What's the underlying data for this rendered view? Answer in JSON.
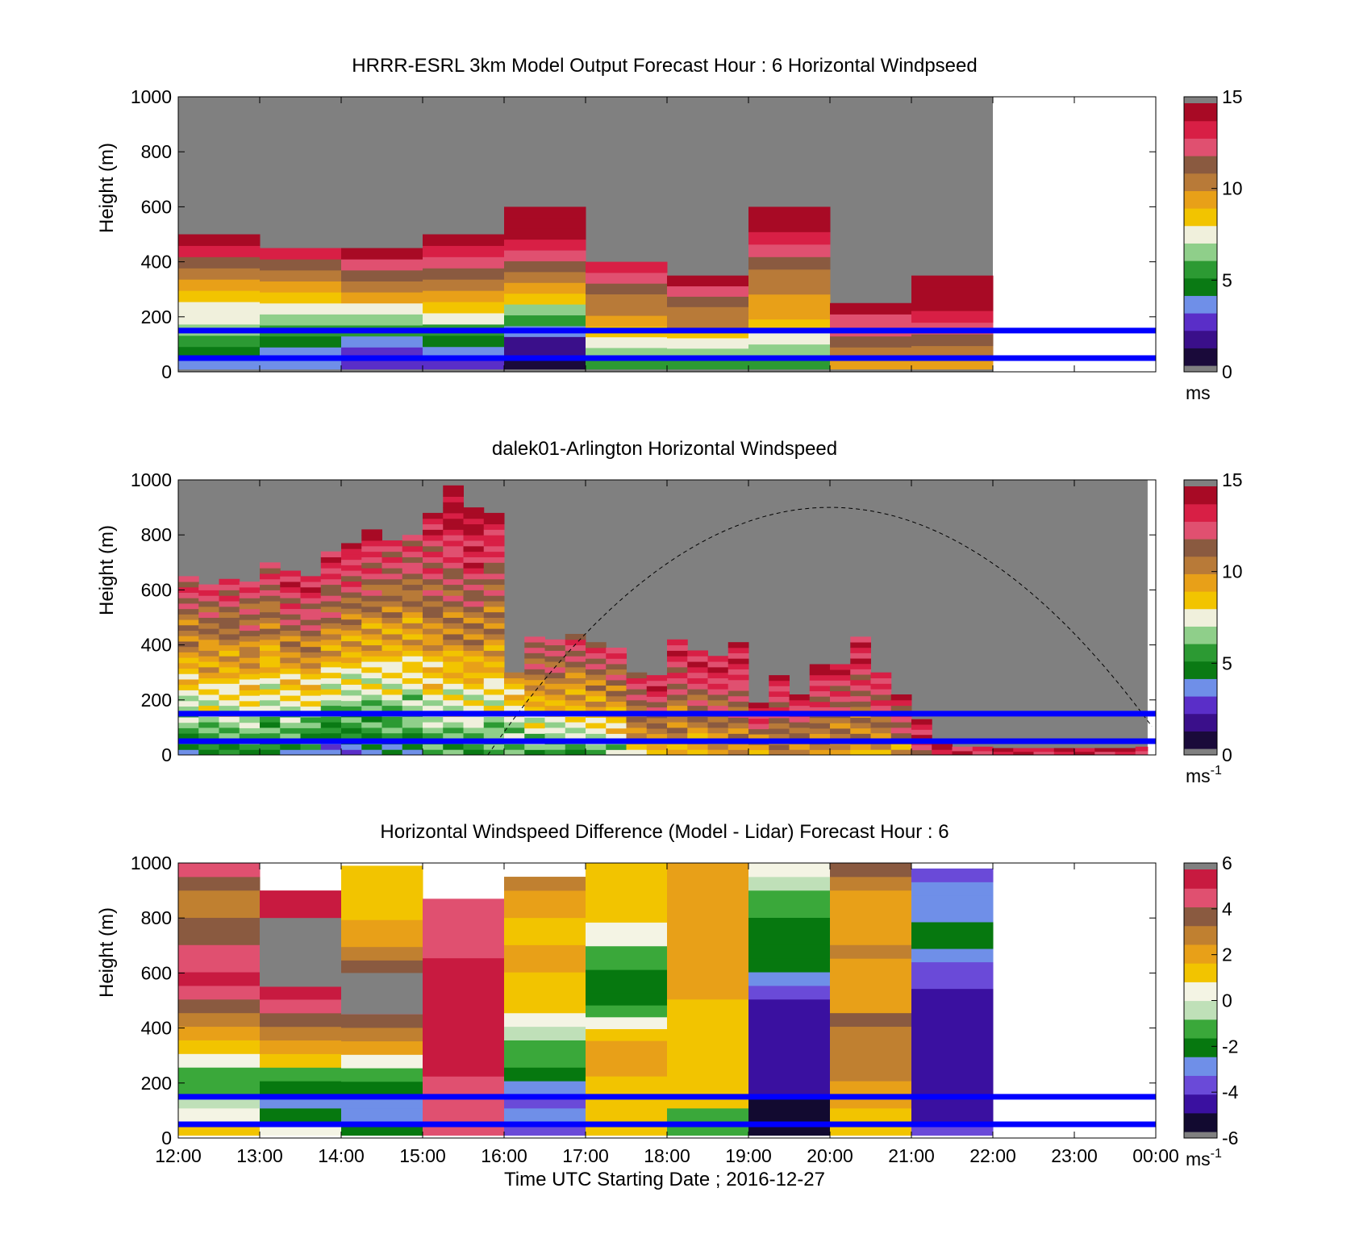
{
  "figure": {
    "xlabel": "Time UTC  Starting Date ; 2016-12-27",
    "x_ticks": [
      "12:00",
      "13:00",
      "14:00",
      "15:00",
      "16:00",
      "17:00",
      "18:00",
      "19:00",
      "20:00",
      "21:00",
      "22:00",
      "23:00",
      "00:00"
    ],
    "y_ticks": [
      "0",
      "200",
      "400",
      "600",
      "800",
      "1000"
    ],
    "ylabel": "Height (m)",
    "background_color": "#808080",
    "reference_line_color": "#0000ff",
    "reference_heights_m": [
      50,
      150
    ],
    "sun_curve_peak": {
      "time_h": 20.0,
      "height_m": 900
    }
  },
  "colormap_speed": [
    "#1a0a3a",
    "#3a0f8a",
    "#5a2ec8",
    "#6f8fe8",
    "#0a7a14",
    "#2c9a33",
    "#8fcf8a",
    "#f0f0dc",
    "#f2c400",
    "#e8a018",
    "#b87a38",
    "#8a5a40",
    "#e05070",
    "#d81f45",
    "#a80a25"
  ],
  "colormap_diff": [
    "#120a30",
    "#3a10a0",
    "#6a4ad8",
    "#6f8fe8",
    "#06780f",
    "#3aa83a",
    "#bfe0b8",
    "#f4f4e4",
    "#f2c400",
    "#e8a018",
    "#c08030",
    "#8a5a40",
    "#e05070",
    "#c81a40"
  ],
  "chart_data": [
    {
      "type": "heatmap",
      "title": "HRRR-ESRL 3km Model Output   Forecast Hour : 6 Horizontal Windpseed",
      "ylim": [
        0,
        1000
      ],
      "xlim": [
        "12:00",
        "00:00"
      ],
      "x_hours": [
        12,
        13,
        14,
        15,
        16,
        17,
        18,
        19,
        20,
        21,
        22
      ],
      "colorbar": {
        "ticks": [
          "0",
          "5",
          "10",
          "15"
        ],
        "unit": "ms",
        "range": [
          0,
          15
        ]
      },
      "columns": [
        {
          "top_m": 500,
          "speeds": [
            3,
            4,
            5,
            6,
            7,
            7.5,
            8,
            9,
            10,
            11,
            13,
            14
          ]
        },
        {
          "top_m": 450,
          "speeds": [
            3,
            3.5,
            4,
            5,
            6,
            7,
            8,
            9.5,
            10.5,
            11.5,
            13
          ]
        },
        {
          "top_m": 450,
          "speeds": [
            2,
            2.5,
            3.5,
            5,
            6,
            7,
            9,
            10,
            11,
            12,
            14
          ]
        },
        {
          "top_m": 500,
          "speeds": [
            2,
            3,
            4,
            5,
            7,
            8,
            9,
            10,
            11,
            12,
            13,
            14.5
          ]
        },
        {
          "top_m": 600,
          "speeds": [
            0.5,
            1,
            1.5,
            3,
            5,
            6,
            8,
            9,
            10,
            11,
            12,
            13,
            14,
            15,
            15
          ]
        },
        {
          "top_m": 400,
          "speeds": [
            5,
            6,
            7,
            8,
            9,
            10,
            10.5,
            11,
            12,
            13
          ]
        },
        {
          "top_m": 350,
          "speeds": [
            5,
            6,
            7,
            8.5,
            10,
            10.5,
            11,
            12,
            14
          ]
        },
        {
          "top_m": 600,
          "speeds": [
            5,
            6,
            7,
            8,
            9,
            9.5,
            10,
            10.5,
            11,
            12,
            13,
            14,
            15
          ]
        },
        {
          "top_m": 250,
          "speeds": [
            9,
            10,
            11,
            12,
            12.5,
            14
          ]
        },
        {
          "top_m": 350,
          "speeds": [
            9,
            10,
            11,
            12,
            13,
            14,
            14.5,
            15
          ]
        }
      ]
    },
    {
      "type": "heatmap",
      "title": "dalek01-Arlington  Horizontal Windspeed",
      "ylim": [
        0,
        1000
      ],
      "xlim": [
        "12:00",
        "00:00"
      ],
      "x_hours": [
        12,
        13,
        14,
        15,
        16,
        17,
        18,
        19,
        20,
        21,
        22,
        23,
        24
      ],
      "colorbar": {
        "ticks": [
          "0",
          "5",
          "10",
          "15"
        ],
        "unit": "ms",
        "unit_exponent": "-1",
        "range": [
          0,
          15
        ]
      },
      "profiles": [
        {
          "t": 12.0,
          "top": 650,
          "base": 4,
          "peak": 13
        },
        {
          "t": 12.25,
          "top": 620,
          "base": 4,
          "peak": 13
        },
        {
          "t": 12.5,
          "top": 640,
          "base": 4.5,
          "peak": 13
        },
        {
          "t": 12.75,
          "top": 630,
          "base": 5,
          "peak": 13
        },
        {
          "t": 13.0,
          "top": 700,
          "base": 4,
          "peak": 13
        },
        {
          "t": 13.25,
          "top": 670,
          "base": 4,
          "peak": 14
        },
        {
          "t": 13.5,
          "top": 650,
          "base": 4,
          "peak": 14
        },
        {
          "t": 13.75,
          "top": 740,
          "base": 3,
          "peak": 14
        },
        {
          "t": 14.0,
          "top": 770,
          "base": 3,
          "peak": 14
        },
        {
          "t": 14.25,
          "top": 820,
          "base": 3.5,
          "peak": 14
        },
        {
          "t": 14.5,
          "top": 780,
          "base": 4,
          "peak": 13
        },
        {
          "t": 14.75,
          "top": 800,
          "base": 4,
          "peak": 13
        },
        {
          "t": 15.0,
          "top": 880,
          "base": 5,
          "peak": 14
        },
        {
          "t": 15.25,
          "top": 980,
          "base": 5,
          "peak": 15
        },
        {
          "t": 15.5,
          "top": 900,
          "base": 5,
          "peak": 15
        },
        {
          "t": 15.75,
          "top": 880,
          "base": 5,
          "peak": 14
        },
        {
          "t": 16.0,
          "top": 300,
          "base": 5,
          "peak": 10
        },
        {
          "t": 16.25,
          "top": 430,
          "base": 5,
          "peak": 13
        },
        {
          "t": 16.5,
          "top": 420,
          "base": 5,
          "peak": 13
        },
        {
          "t": 16.75,
          "top": 440,
          "base": 5,
          "peak": 13
        },
        {
          "t": 17.0,
          "top": 410,
          "base": 5.5,
          "peak": 13
        },
        {
          "t": 17.25,
          "top": 390,
          "base": 6,
          "peak": 13
        },
        {
          "t": 17.5,
          "top": 300,
          "base": 8,
          "peak": 13
        },
        {
          "t": 17.75,
          "top": 290,
          "base": 8.5,
          "peak": 14
        },
        {
          "t": 18.0,
          "top": 420,
          "base": 8.5,
          "peak": 14
        },
        {
          "t": 18.25,
          "top": 380,
          "base": 8.5,
          "peak": 14
        },
        {
          "t": 18.5,
          "top": 360,
          "base": 9,
          "peak": 14
        },
        {
          "t": 18.75,
          "top": 410,
          "base": 9.5,
          "peak": 14
        },
        {
          "t": 19.0,
          "top": 190,
          "base": 9,
          "peak": 14
        },
        {
          "t": 19.25,
          "top": 290,
          "base": 9.5,
          "peak": 14
        },
        {
          "t": 19.5,
          "top": 220,
          "base": 9,
          "peak": 14
        },
        {
          "t": 19.75,
          "top": 330,
          "base": 9.5,
          "peak": 14
        },
        {
          "t": 20.0,
          "top": 330,
          "base": 9,
          "peak": 14
        },
        {
          "t": 20.25,
          "top": 430,
          "base": 9,
          "peak": 14
        },
        {
          "t": 20.5,
          "top": 300,
          "base": 9,
          "peak": 14
        },
        {
          "t": 20.75,
          "top": 220,
          "base": 9,
          "peak": 14
        },
        {
          "t": 21.0,
          "top": 130,
          "base": 12,
          "peak": 14
        },
        {
          "t": 21.25,
          "top": 40,
          "base": 13,
          "peak": 14
        },
        {
          "t": 21.5,
          "top": 30,
          "base": 13,
          "peak": 14
        },
        {
          "t": 21.75,
          "top": 30,
          "base": 13,
          "peak": 14
        },
        {
          "t": 22.0,
          "top": 25,
          "base": 13,
          "peak": 14
        },
        {
          "t": 22.25,
          "top": 25,
          "base": 13,
          "peak": 14
        },
        {
          "t": 22.5,
          "top": 25,
          "base": 13,
          "peak": 14
        },
        {
          "t": 22.75,
          "top": 25,
          "base": 13,
          "peak": 14
        },
        {
          "t": 23.0,
          "top": 25,
          "base": 13,
          "peak": 14
        },
        {
          "t": 23.25,
          "top": 25,
          "base": 13,
          "peak": 14
        },
        {
          "t": 23.5,
          "top": 25,
          "base": 13,
          "peak": 14
        },
        {
          "t": 23.75,
          "top": 30,
          "base": 13,
          "peak": 14
        }
      ]
    },
    {
      "type": "heatmap",
      "title": "Horizontal Windspeed Difference (Model - Lidar) Forecast Hour : 6",
      "ylim": [
        0,
        1000
      ],
      "xlim": [
        "12:00",
        "00:00"
      ],
      "x_hours": [
        12,
        13,
        14,
        15,
        16,
        17,
        18,
        19,
        20,
        21,
        22
      ],
      "colorbar": {
        "ticks": [
          "-6",
          "-4",
          "-2",
          "0",
          "2",
          "4",
          "6"
        ],
        "unit": "ms",
        "unit_exponent": "-1",
        "range": [
          -6,
          6
        ]
      },
      "columns": [
        {
          "top_m": 1000,
          "gray": [],
          "diffs": [
            1,
            0,
            -0.5,
            -1.5,
            -1,
            0.5,
            1,
            2,
            3,
            4,
            5,
            5.5,
            5,
            4.5,
            4,
            3.5,
            3,
            3,
            3.5,
            4.5
          ]
        },
        {
          "top_m": 900,
          "gray": [
            [
              550,
              800
            ]
          ],
          "diffs": [
            0.5,
            -2,
            -3,
            -2.5,
            -1,
            1,
            2,
            3,
            4,
            5,
            5.5,
            5.5,
            5.5,
            5.5,
            5.5,
            5.5,
            6,
            6
          ]
        },
        {
          "top_m": 990,
          "gray": [
            [
              450,
              600
            ]
          ],
          "diffs": [
            -2,
            -3,
            -3,
            -2.5,
            -1,
            0.5,
            2,
            3,
            4,
            5,
            5.5,
            5,
            4,
            3,
            2.5,
            2,
            1.5,
            1.5,
            1.5,
            1.5
          ]
        },
        {
          "top_m": 870,
          "gray": [],
          "diffs": [
            5,
            5.5,
            5.5,
            5
          ]
        },
        {
          "top_m": 950,
          "gray": [],
          "diffs": [
            -4,
            -3,
            -3.5,
            -3,
            -2.5,
            -1.5,
            -1,
            -0.5,
            0,
            1,
            1.5,
            1.5,
            2,
            2,
            1.5,
            1.5,
            2,
            2.5,
            3
          ]
        },
        {
          "top_m": 1000,
          "gray": [],
          "diffs": [
            1,
            1.5,
            1.5,
            1.5,
            1.5,
            2,
            2,
            2,
            1,
            0,
            -1,
            -2,
            -2.5,
            -2,
            -1.5,
            -1,
            0,
            0.5,
            1,
            1.5,
            1.5,
            1,
            1.5
          ]
        },
        {
          "top_m": 1000,
          "gray": [],
          "diffs": [
            -1,
            -1.5,
            1,
            1.5,
            1.5,
            1.5,
            1.5,
            1.5,
            1.5,
            1.5,
            2,
            2,
            2,
            2,
            2,
            2,
            2,
            2.5,
            2.5,
            2
          ]
        },
        {
          "top_m": 1000,
          "gray": [],
          "diffs": [
            -6,
            -6,
            -5.5,
            -5,
            -5,
            -5,
            -5,
            -5,
            -5,
            -4.5,
            -4,
            -3,
            -2.5,
            -2.5,
            -2.5,
            -2,
            -1.5,
            -1,
            -0.5,
            0
          ]
        },
        {
          "top_m": 1000,
          "gray": [],
          "diffs": [
            1,
            1.5,
            2,
            2.5,
            3,
            3,
            3,
            3,
            3.5,
            2,
            2,
            2.5,
            2.5,
            3,
            2.5,
            2,
            2,
            2.5,
            3,
            3.5
          ]
        },
        {
          "top_m": 980,
          "gray": [],
          "diffs": [
            -4,
            -4.5,
            -4.5,
            -5,
            -5,
            -5,
            -5,
            -5,
            -5,
            -5,
            -4.5,
            -4,
            -3.5,
            -3,
            -2.5,
            -2.5,
            -3,
            -3,
            -3,
            -4
          ]
        }
      ]
    }
  ]
}
